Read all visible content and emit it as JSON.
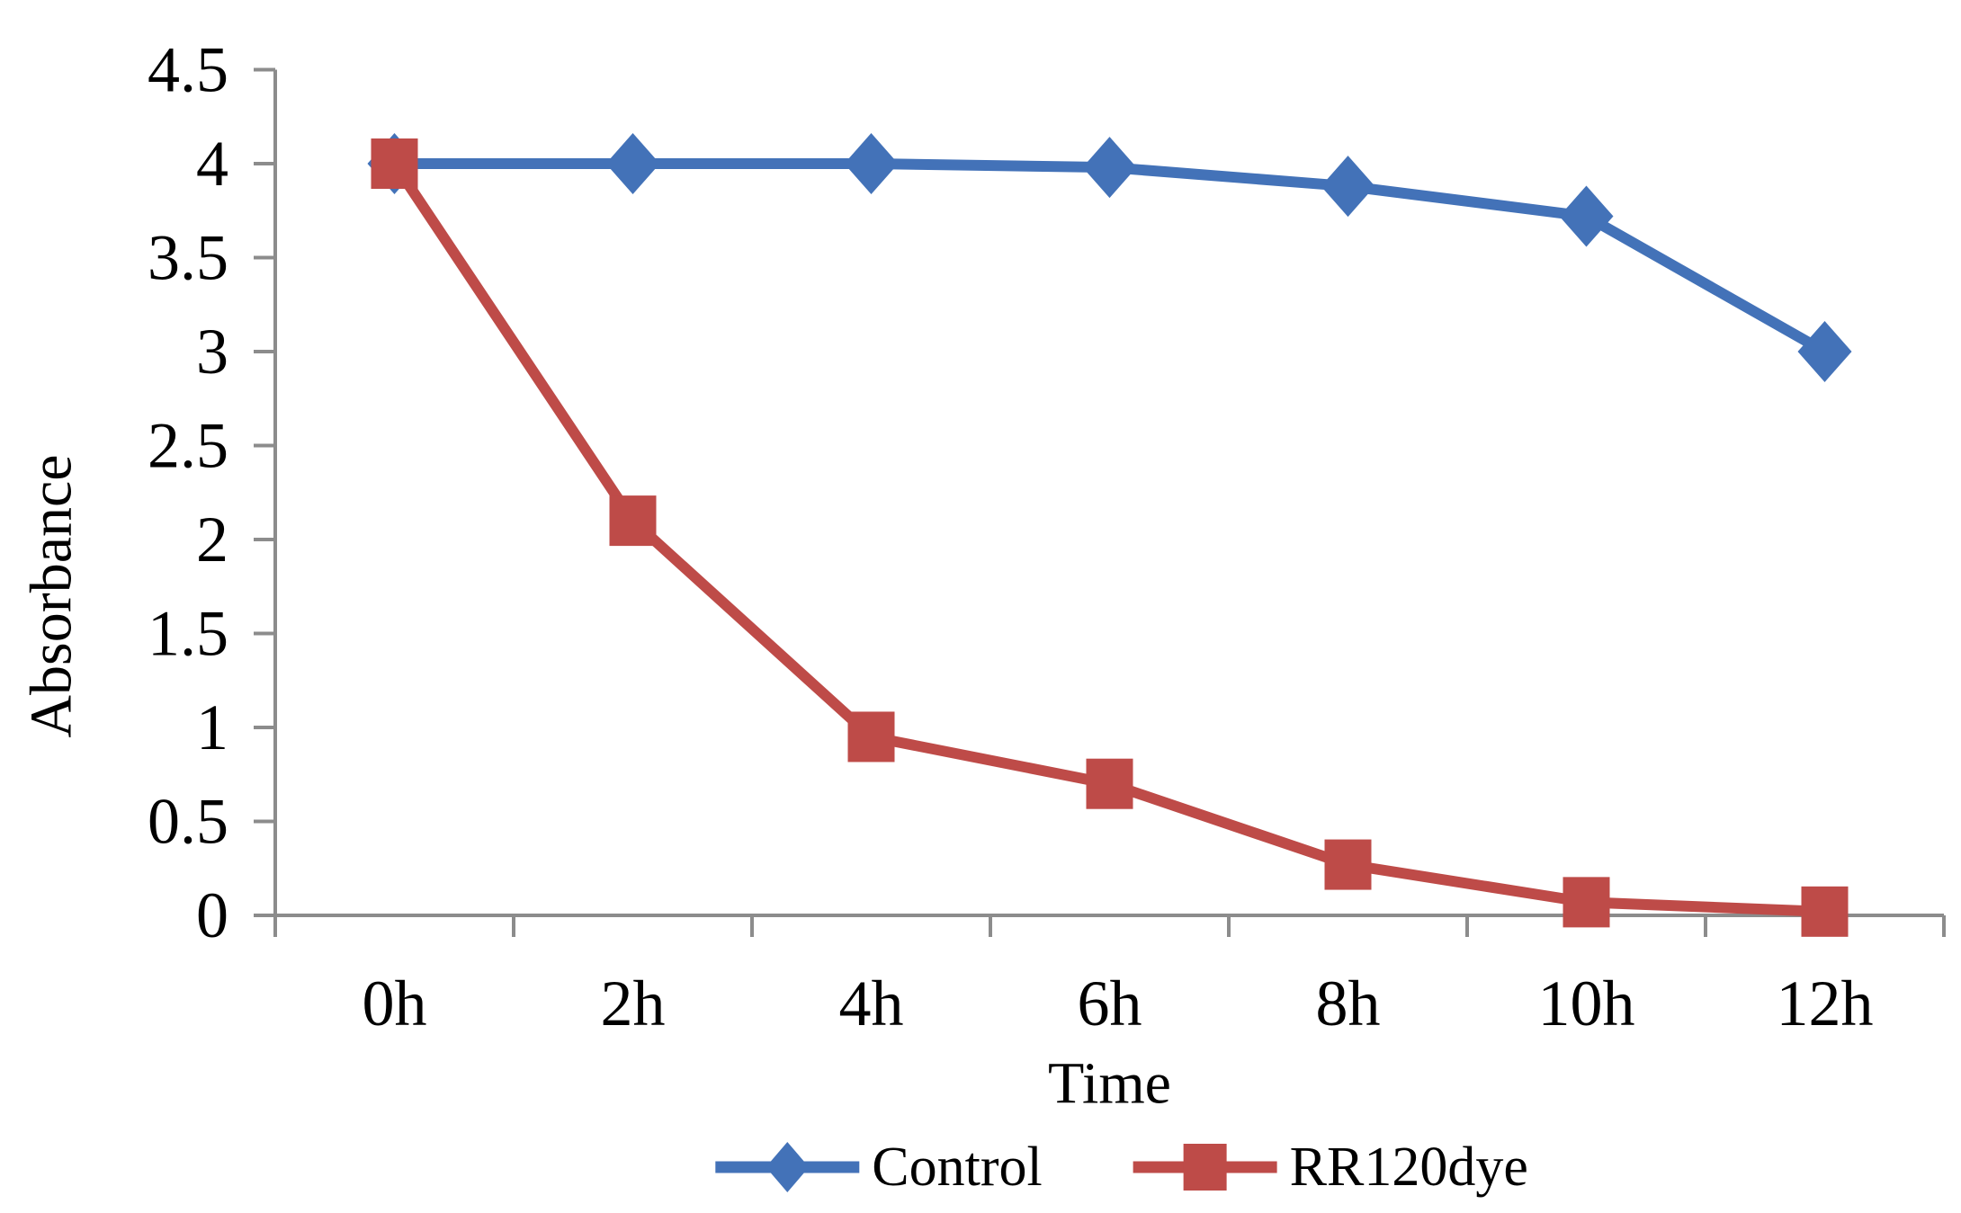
{
  "figure": {
    "description": "Line chart of absorbance versus time for control and RR120 dye"
  },
  "chart_data": {
    "type": "line",
    "categories": [
      "0h",
      "2h",
      "4h",
      "6h",
      "8h",
      "10h",
      "12h"
    ],
    "series": [
      {
        "name": "Control",
        "color": "#4372B8",
        "marker": "diamond",
        "values": [
          4.0,
          4.0,
          4.0,
          3.98,
          3.88,
          3.72,
          3.0
        ]
      },
      {
        "name": "RR120dye",
        "color": "#BE4B48",
        "marker": "square",
        "values": [
          4.0,
          2.1,
          0.95,
          0.7,
          0.27,
          0.07,
          0.02
        ]
      }
    ],
    "xlabel": "Time",
    "ylabel": "Absorbance",
    "ylim": [
      0,
      4.5
    ],
    "yticks": [
      "0",
      "0.5",
      "1",
      "1.5",
      "2",
      "2.5",
      "3",
      "3.5",
      "4",
      "4.5"
    ],
    "grid": false,
    "legend_position": "bottom",
    "axis_color": "#8C8C8C",
    "text_color": "#000000",
    "background": "#FFFFFF"
  }
}
